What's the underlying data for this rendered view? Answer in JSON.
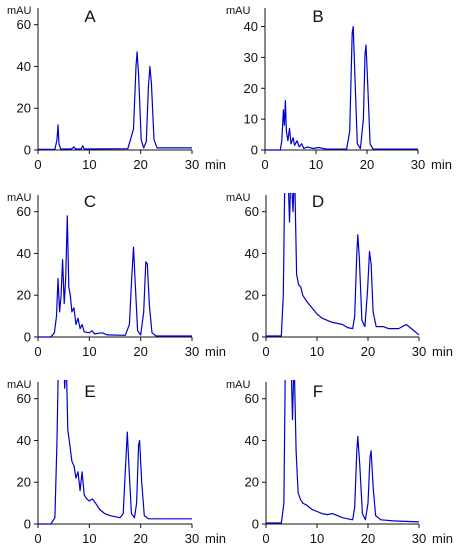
{
  "chart_data": [
    {
      "type": "line",
      "title": "A",
      "xlabel": "min",
      "ylabel": "mAU",
      "xlim": [
        0,
        30
      ],
      "ylim": [
        0,
        68
      ],
      "xticks": [
        0,
        10,
        20,
        30
      ],
      "yticks": [
        0,
        20,
        40,
        60
      ],
      "series": [
        {
          "points": [
            [
              0,
              0.3
            ],
            [
              3.3,
              0.3
            ],
            [
              3.7,
              5
            ],
            [
              3.9,
              12
            ],
            [
              4.1,
              3
            ],
            [
              4.4,
              0.5
            ],
            [
              6.5,
              0.5
            ],
            [
              7,
              1.5
            ],
            [
              7.3,
              0.5
            ],
            [
              8.4,
              0.5
            ],
            [
              8.7,
              2
            ],
            [
              9,
              0.5
            ],
            [
              17.5,
              0.6
            ],
            [
              18.6,
              10
            ],
            [
              19.1,
              40
            ],
            [
              19.3,
              47
            ],
            [
              19.6,
              36
            ],
            [
              20.1,
              5
            ],
            [
              20.6,
              1
            ],
            [
              21.1,
              4
            ],
            [
              21.5,
              30
            ],
            [
              21.8,
              40
            ],
            [
              22.1,
              32
            ],
            [
              22.6,
              5
            ],
            [
              23.2,
              1
            ],
            [
              30,
              1
            ]
          ]
        }
      ]
    },
    {
      "type": "line",
      "title": "B",
      "xlabel": "min",
      "ylabel": "mAU",
      "xlim": [
        0,
        30
      ],
      "ylim": [
        0,
        46
      ],
      "xticks": [
        0,
        10,
        20,
        30
      ],
      "yticks": [
        0,
        10,
        20,
        30,
        40
      ],
      "series": [
        {
          "points": [
            [
              0,
              0
            ],
            [
              3,
              0
            ],
            [
              3.3,
              3
            ],
            [
              3.6,
              13
            ],
            [
              3.8,
              8
            ],
            [
              4,
              16
            ],
            [
              4.2,
              6
            ],
            [
              4.5,
              3
            ],
            [
              4.8,
              7
            ],
            [
              5.1,
              2
            ],
            [
              5.5,
              4
            ],
            [
              5.8,
              1.5
            ],
            [
              6.3,
              3
            ],
            [
              6.7,
              1
            ],
            [
              7.2,
              2
            ],
            [
              7.6,
              0.5
            ],
            [
              8.3,
              1
            ],
            [
              9.5,
              0.5
            ],
            [
              10.5,
              0.8
            ],
            [
              12,
              0.3
            ],
            [
              16,
              0.3
            ],
            [
              16.6,
              6
            ],
            [
              17.1,
              38
            ],
            [
              17.3,
              40
            ],
            [
              17.6,
              25
            ],
            [
              18.1,
              2
            ],
            [
              18.7,
              0.5
            ],
            [
              19.3,
              10
            ],
            [
              19.6,
              31
            ],
            [
              19.8,
              34
            ],
            [
              20.1,
              23
            ],
            [
              20.6,
              2
            ],
            [
              21.2,
              0.3
            ],
            [
              30,
              0.3
            ]
          ]
        }
      ]
    },
    {
      "type": "line",
      "title": "C",
      "xlabel": "min",
      "ylabel": "mAU",
      "xlim": [
        0,
        30
      ],
      "ylim": [
        0,
        68
      ],
      "xticks": [
        0,
        10,
        20,
        30
      ],
      "yticks": [
        0,
        20,
        40,
        60
      ],
      "series": [
        {
          "points": [
            [
              0,
              0
            ],
            [
              2.5,
              0
            ],
            [
              3.2,
              2
            ],
            [
              3.6,
              10
            ],
            [
              3.9,
              28
            ],
            [
              4.2,
              12
            ],
            [
              4.5,
              20
            ],
            [
              4.8,
              37
            ],
            [
              5.1,
              16
            ],
            [
              5.4,
              28
            ],
            [
              5.7,
              58
            ],
            [
              6,
              24
            ],
            [
              6.3,
              20
            ],
            [
              6.6,
              12
            ],
            [
              7,
              14
            ],
            [
              7.4,
              6
            ],
            [
              7.8,
              9
            ],
            [
              8.2,
              4
            ],
            [
              8.6,
              6
            ],
            [
              9,
              2.5
            ],
            [
              10,
              2
            ],
            [
              10.5,
              3
            ],
            [
              11,
              1.5
            ],
            [
              12.5,
              2
            ],
            [
              13.5,
              1
            ],
            [
              17,
              0.8
            ],
            [
              17.8,
              6
            ],
            [
              18.3,
              30
            ],
            [
              18.6,
              43
            ],
            [
              18.9,
              28
            ],
            [
              19.4,
              3
            ],
            [
              20,
              1
            ],
            [
              20.6,
              12
            ],
            [
              21,
              36
            ],
            [
              21.3,
              35
            ],
            [
              21.7,
              15
            ],
            [
              22.2,
              2
            ],
            [
              23,
              0.5
            ],
            [
              30,
              0.5
            ]
          ]
        }
      ]
    },
    {
      "type": "line",
      "title": "D",
      "xlabel": "min",
      "ylabel": "mAU",
      "xlim": [
        0,
        30
      ],
      "ylim": [
        0,
        68
      ],
      "xticks": [
        0,
        10,
        20,
        30
      ],
      "yticks": [
        0,
        20,
        40,
        60
      ],
      "series": [
        {
          "points": [
            [
              0,
              0.5
            ],
            [
              3,
              0.5
            ],
            [
              3.4,
              20
            ],
            [
              3.7,
              80
            ],
            [
              4.3,
              80
            ],
            [
              4.6,
              55
            ],
            [
              4.9,
              80
            ],
            [
              5.3,
              60
            ],
            [
              5.6,
              80
            ],
            [
              6,
              30
            ],
            [
              6.4,
              25
            ],
            [
              6.8,
              24
            ],
            [
              7.2,
              20
            ],
            [
              8,
              17
            ],
            [
              9,
              14
            ],
            [
              10,
              11
            ],
            [
              11,
              9
            ],
            [
              12,
              8
            ],
            [
              13,
              7
            ],
            [
              14,
              6.5
            ],
            [
              15,
              6
            ],
            [
              16,
              4.5
            ],
            [
              17,
              4
            ],
            [
              17.4,
              10
            ],
            [
              17.8,
              40
            ],
            [
              18,
              49
            ],
            [
              18.3,
              38
            ],
            [
              18.8,
              8
            ],
            [
              19.4,
              5
            ],
            [
              19.9,
              22
            ],
            [
              20.3,
              41
            ],
            [
              20.6,
              35
            ],
            [
              21,
              12
            ],
            [
              21.6,
              5
            ],
            [
              23,
              5
            ],
            [
              24,
              4
            ],
            [
              26,
              4
            ],
            [
              27.5,
              6
            ],
            [
              28.5,
              4
            ],
            [
              30,
              1
            ]
          ]
        }
      ]
    },
    {
      "type": "line",
      "title": "E",
      "xlabel": "min",
      "ylabel": "mAU",
      "xlim": [
        0,
        30
      ],
      "ylim": [
        0,
        68
      ],
      "xticks": [
        0,
        10,
        20,
        30
      ],
      "yticks": [
        0,
        20,
        40,
        60
      ],
      "series": [
        {
          "points": [
            [
              0,
              0
            ],
            [
              2.5,
              0
            ],
            [
              3.3,
              3
            ],
            [
              3.7,
              40
            ],
            [
              4,
              80
            ],
            [
              5,
              80
            ],
            [
              5.2,
              65
            ],
            [
              5.5,
              80
            ],
            [
              5.8,
              45
            ],
            [
              6.2,
              38
            ],
            [
              6.6,
              30
            ],
            [
              7,
              28
            ],
            [
              7.4,
              22
            ],
            [
              7.8,
              25
            ],
            [
              8.2,
              16
            ],
            [
              8.6,
              25
            ],
            [
              9,
              14
            ],
            [
              9.5,
              12
            ],
            [
              10,
              11
            ],
            [
              10.6,
              12
            ],
            [
              11.2,
              10
            ],
            [
              12,
              7
            ],
            [
              13,
              5
            ],
            [
              14,
              4
            ],
            [
              15,
              3.5
            ],
            [
              16,
              3
            ],
            [
              16.6,
              5
            ],
            [
              17.1,
              30
            ],
            [
              17.4,
              44
            ],
            [
              17.7,
              28
            ],
            [
              18.2,
              5
            ],
            [
              18.8,
              3
            ],
            [
              19.2,
              10
            ],
            [
              19.6,
              38
            ],
            [
              19.8,
              40
            ],
            [
              20.2,
              20
            ],
            [
              20.7,
              4
            ],
            [
              21.5,
              2.5
            ],
            [
              23,
              2.5
            ],
            [
              30,
              2.5
            ]
          ]
        }
      ]
    },
    {
      "type": "line",
      "title": "F",
      "xlabel": "min",
      "ylabel": "mAU",
      "xlim": [
        0,
        30
      ],
      "ylim": [
        0,
        68
      ],
      "xticks": [
        0,
        10,
        20,
        30
      ],
      "yticks": [
        0,
        20,
        40,
        60
      ],
      "series": [
        {
          "points": [
            [
              0,
              0.5
            ],
            [
              3,
              0.5
            ],
            [
              3.5,
              10
            ],
            [
              3.8,
              80
            ],
            [
              4.9,
              80
            ],
            [
              5.2,
              50
            ],
            [
              5.5,
              80
            ],
            [
              5.9,
              35
            ],
            [
              6.3,
              15
            ],
            [
              6.7,
              12
            ],
            [
              7.2,
              10
            ],
            [
              8,
              9
            ],
            [
              9,
              7
            ],
            [
              10,
              6
            ],
            [
              11,
              5
            ],
            [
              12,
              4.5
            ],
            [
              13,
              5
            ],
            [
              14,
              4
            ],
            [
              15,
              3
            ],
            [
              16,
              2.5
            ],
            [
              17,
              2
            ],
            [
              17.4,
              8
            ],
            [
              17.8,
              35
            ],
            [
              18,
              42
            ],
            [
              18.4,
              28
            ],
            [
              18.9,
              5
            ],
            [
              19.5,
              2
            ],
            [
              20,
              10
            ],
            [
              20.4,
              32
            ],
            [
              20.6,
              35
            ],
            [
              21,
              18
            ],
            [
              21.5,
              4
            ],
            [
              22.5,
              2
            ],
            [
              25,
              1.5
            ],
            [
              30,
              1
            ]
          ]
        }
      ]
    }
  ],
  "style": {
    "trace_color": "#0000cc",
    "axis_color": "#111111"
  }
}
